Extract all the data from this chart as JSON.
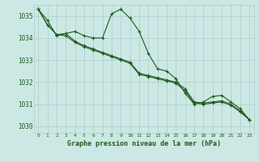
{
  "bg_color": "#cce8e4",
  "grid_color": "#aacccc",
  "line_color": "#1e5c1e",
  "marker_color": "#1e5c1e",
  "title": "Graphe pression niveau de la mer (hPa)",
  "xlim": [
    -0.5,
    23.5
  ],
  "ylim": [
    1029.7,
    1035.5
  ],
  "yticks": [
    1030,
    1031,
    1032,
    1033,
    1034,
    1035
  ],
  "xticks": [
    0,
    1,
    2,
    3,
    4,
    5,
    6,
    7,
    8,
    9,
    10,
    11,
    12,
    13,
    14,
    15,
    16,
    17,
    18,
    19,
    20,
    21,
    22,
    23
  ],
  "series": [
    [
      1035.3,
      1034.8,
      1034.1,
      1034.2,
      1034.3,
      1034.1,
      1034.0,
      1034.0,
      1035.1,
      1035.3,
      1034.9,
      1034.3,
      1033.3,
      1032.6,
      1032.5,
      1032.15,
      1031.5,
      1031.0,
      1031.1,
      1031.35,
      1031.4,
      1031.1,
      1030.8,
      1030.3
    ],
    [
      1035.3,
      1034.6,
      1034.15,
      1034.2,
      1033.85,
      1033.65,
      1033.5,
      1033.35,
      1033.2,
      1033.05,
      1032.9,
      1032.4,
      1032.3,
      1032.2,
      1032.1,
      1032.0,
      1031.7,
      1031.1,
      1031.05,
      1031.1,
      1031.15,
      1031.0,
      1030.7,
      1030.3
    ],
    [
      1035.3,
      1034.6,
      1034.15,
      1034.1,
      1033.8,
      1033.6,
      1033.45,
      1033.3,
      1033.15,
      1033.0,
      1032.85,
      1032.35,
      1032.25,
      1032.15,
      1032.05,
      1031.95,
      1031.6,
      1031.05,
      1031.0,
      1031.05,
      1031.1,
      1030.95,
      1030.65,
      1030.3
    ]
  ]
}
